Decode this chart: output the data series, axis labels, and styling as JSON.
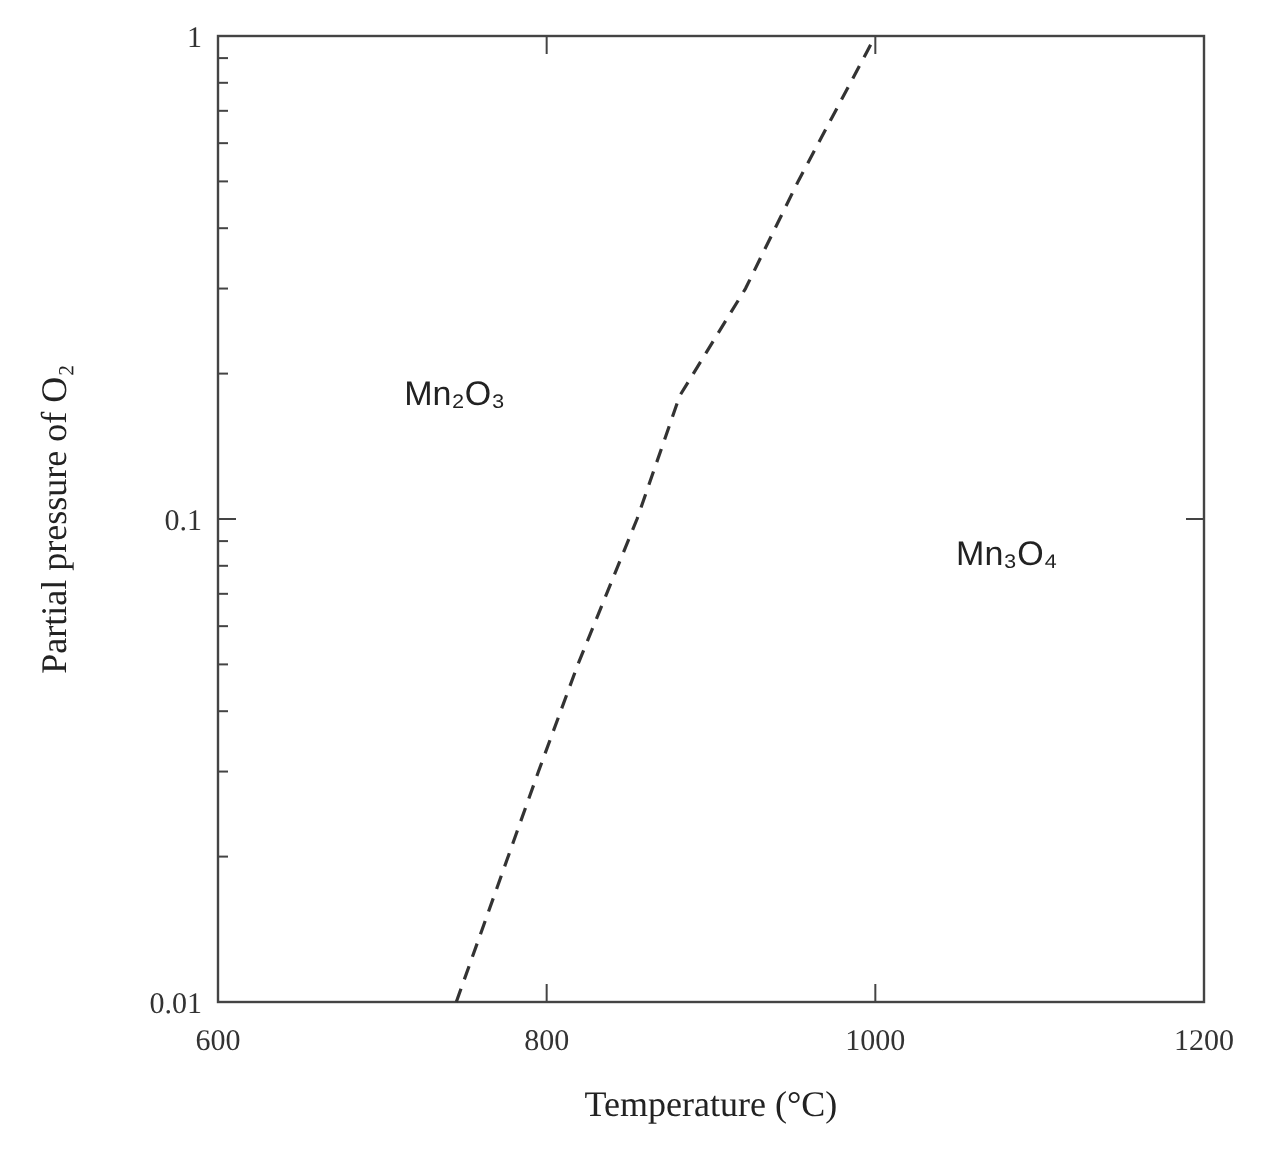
{
  "chart_data": {
    "type": "line",
    "xlabel": "Temperature (°C)",
    "ylabel": "Partial pressure of O₂",
    "log": "y",
    "grid": false,
    "marker": "none",
    "line_style": "dashed",
    "xlim": [
      600,
      1200
    ],
    "xticks": [
      600,
      800,
      1000,
      1200
    ],
    "ylim": [
      0.01,
      1
    ],
    "yticks": [
      0.01,
      {
        "value": 0.02,
        "label": null
      },
      {
        "value": 0.03,
        "label": null
      },
      {
        "value": 0.04,
        "label": null
      },
      {
        "value": 0.05,
        "label": null
      },
      {
        "value": 0.06,
        "label": null
      },
      {
        "value": 0.07,
        "label": null
      },
      {
        "value": 0.08,
        "label": null
      },
      {
        "value": 0.09,
        "label": null
      },
      0.1,
      {
        "value": 0.2,
        "label": null
      },
      {
        "value": 0.3,
        "label": null
      },
      {
        "value": 0.4,
        "label": null
      },
      {
        "value": 0.5,
        "label": null
      },
      {
        "value": 0.6,
        "label": null
      },
      {
        "value": 0.7,
        "label": null
      },
      {
        "value": 0.8,
        "label": null
      },
      {
        "value": 0.9,
        "label": null
      },
      1
    ],
    "series": [
      {
        "color": "#333333",
        "x": [
          745,
          795,
          819,
          855,
          881,
          921,
          953,
          1000
        ],
        "values": [
          0.01,
          0.03,
          0.05,
          0.1,
          0.18,
          0.3,
          0.5,
          1
        ]
      }
    ],
    "annotations": [
      "Mn₂O₃",
      "Mn₃O₄"
    ]
  }
}
